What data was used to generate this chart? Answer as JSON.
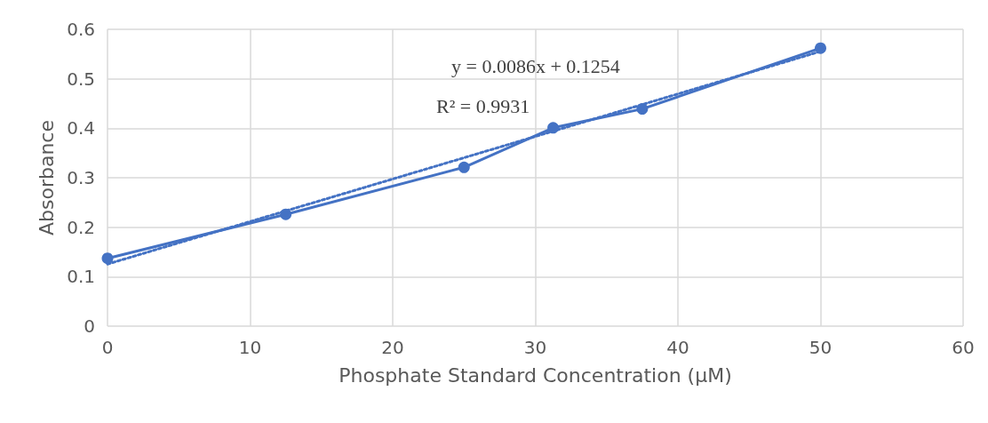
{
  "chart_data": {
    "type": "line",
    "xlabel": "Phosphate Standard Concentration (µM)",
    "ylabel": "Absorbance",
    "annotations": [
      "y = 0.0086x + 0.1254",
      "R² = 0.9931"
    ],
    "xlim": [
      0,
      60
    ],
    "xticks": [
      0,
      10,
      20,
      30,
      40,
      50,
      60
    ],
    "ylim": [
      0,
      0.6
    ],
    "yticks": [
      0,
      0.1,
      0.2,
      0.3,
      0.4,
      0.5,
      0.6
    ],
    "grid": true,
    "series": [
      {
        "color": "#4472c4",
        "marker": "circle",
        "line_style": "solid",
        "x": [
          0,
          12.5,
          25,
          31.25,
          37.5,
          50
        ],
        "values": [
          0.137,
          0.226,
          0.321,
          0.401,
          0.439,
          0.562
        ]
      },
      {
        "color": "#4472c4",
        "marker": "none",
        "line_style": "dotted",
        "x": [
          0,
          50
        ],
        "values": [
          0.1254,
          0.5554
        ]
      }
    ]
  }
}
